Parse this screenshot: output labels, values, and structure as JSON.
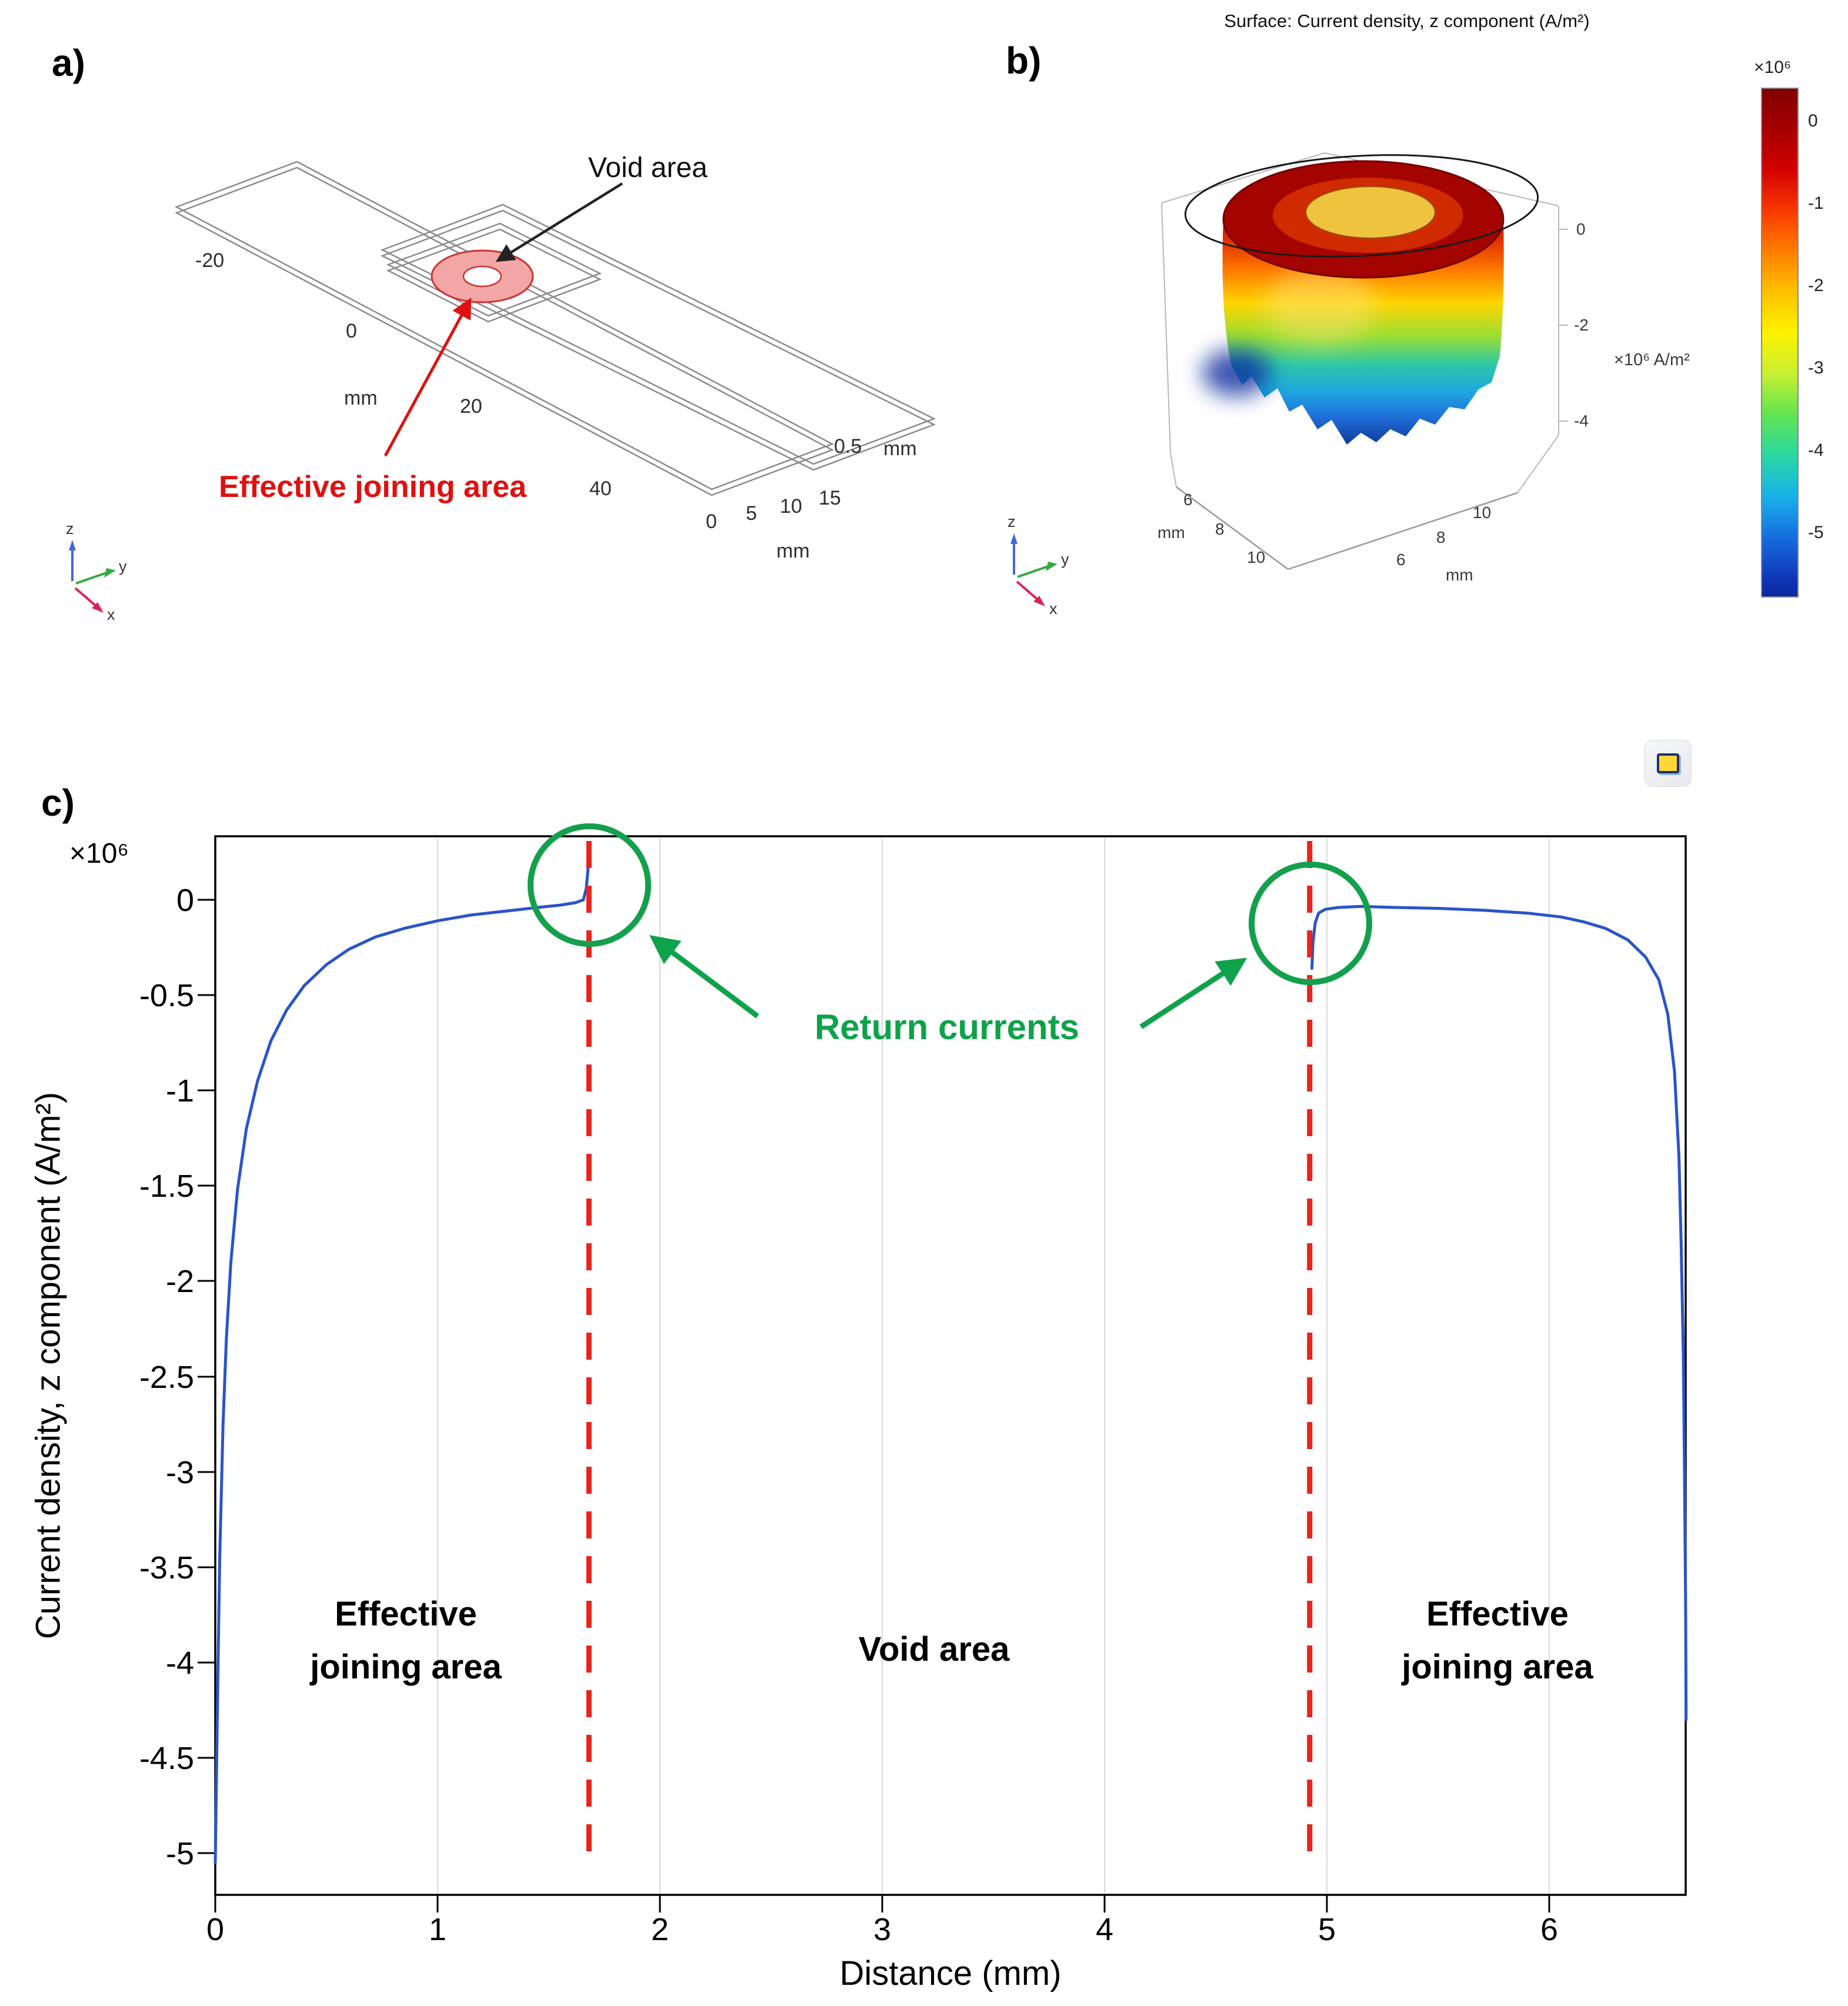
{
  "figure": {
    "panel_a": "a)",
    "panel_b": "b)",
    "panel_c": "c)"
  },
  "triad": {
    "x": "x",
    "y": "y",
    "z": "z"
  },
  "panelA": {
    "void_label": "Void area",
    "joining_label": "Effective joining area",
    "long_axis_ticks": [
      "-20",
      "0",
      "20",
      "40"
    ],
    "long_axis_unit": "mm",
    "width_axis_ticks": [
      "0",
      "5",
      "10",
      "15"
    ],
    "width_axis_unit": "mm",
    "thickness_value": "0.5",
    "thickness_unit": "mm"
  },
  "panelB": {
    "title": "Surface: Current density, z component (A/m²)",
    "z_axis_ticks": [
      "0",
      "-2",
      "-4"
    ],
    "z_axis_unit": "×10⁶ A/m²",
    "left_axis_ticks": [
      "6",
      "8",
      "10"
    ],
    "left_axis_unit": "mm",
    "right_axis_ticks": [
      "6",
      "8",
      "10"
    ],
    "right_axis_unit": "mm",
    "colorbar": {
      "exp": "×10⁶",
      "ticks": [
        "0",
        "-1",
        "-2",
        "-3",
        "-4",
        "-5"
      ]
    }
  },
  "panelC": {
    "exp_label": "×10⁶",
    "xlabel": "Distance (mm)",
    "ylabel": "Current density, z component (A/m²)",
    "xtick_labels": [
      "0",
      "1",
      "2",
      "3",
      "4",
      "5",
      "6"
    ],
    "ytick_labels": [
      "0",
      "-0.5",
      "-1",
      "-1.5",
      "-2",
      "-2.5",
      "-3",
      "-3.5",
      "-4",
      "-4.5",
      "-5"
    ],
    "annotations": {
      "return_currents": "Return currents",
      "effective_line1": "Effective",
      "effective_line2": "joining area",
      "void_area": "Void area"
    }
  },
  "chart_data": {
    "type": "line",
    "title": "",
    "xlabel": "Distance (mm)",
    "ylabel": "Current density, z component (A/m²)",
    "y_scale_label": "×10⁶",
    "y_units": "A/m², values in units of 10⁶",
    "xlim": [
      0,
      6.61
    ],
    "ylim": [
      -5.22,
      0.33
    ],
    "xticks": [
      0,
      1,
      2,
      3,
      4,
      5,
      6
    ],
    "yticks": [
      0,
      -0.5,
      -1,
      -1.5,
      -2,
      -2.5,
      -3,
      -3.5,
      -4,
      -4.5,
      -5
    ],
    "grid": "vertical-gridlines-only",
    "legend": "none",
    "series": [
      {
        "name": "left effective joining area segment",
        "color": "#2a54c8",
        "x": [
          0,
          0.01,
          0.02,
          0.035,
          0.05,
          0.07,
          0.1,
          0.14,
          0.19,
          0.25,
          0.32,
          0.4,
          0.5,
          0.6,
          0.72,
          0.85,
          1.0,
          1.15,
          1.3,
          1.45,
          1.55,
          1.62,
          1.655,
          1.668,
          1.675,
          1.68
        ],
        "y": [
          -5.05,
          -4.2,
          -3.45,
          -2.75,
          -2.3,
          -1.9,
          -1.52,
          -1.2,
          -0.95,
          -0.74,
          -0.58,
          -0.45,
          -0.34,
          -0.26,
          -0.195,
          -0.15,
          -0.11,
          -0.08,
          -0.06,
          -0.04,
          -0.028,
          -0.015,
          0.0,
          0.06,
          0.15,
          0.27
        ]
      },
      {
        "name": "right effective joining area segment",
        "color": "#2a54c8",
        "x": [
          4.93,
          4.935,
          4.945,
          4.96,
          4.99,
          5.05,
          5.15,
          5.3,
          5.5,
          5.7,
          5.9,
          6.05,
          6.15,
          6.25,
          6.35,
          6.43,
          6.49,
          6.53,
          6.56,
          6.58,
          6.59,
          6.6,
          6.605,
          6.61,
          6.612
        ],
        "y": [
          -0.36,
          -0.22,
          -0.12,
          -0.07,
          -0.05,
          -0.04,
          -0.035,
          -0.04,
          -0.045,
          -0.055,
          -0.07,
          -0.09,
          -0.115,
          -0.15,
          -0.21,
          -0.3,
          -0.42,
          -0.6,
          -0.9,
          -1.35,
          -1.8,
          -2.4,
          -3.0,
          -3.7,
          -4.3
        ]
      }
    ],
    "reference_lines": [
      {
        "axis": "x",
        "value": 1.68,
        "style": "dashed",
        "color": "#e8241c"
      },
      {
        "axis": "x",
        "value": 4.92,
        "style": "dashed",
        "color": "#e8241c"
      }
    ],
    "annotations": [
      "Return currents",
      "Effective joining area (left)",
      "Void area",
      "Effective joining area (right)"
    ]
  }
}
